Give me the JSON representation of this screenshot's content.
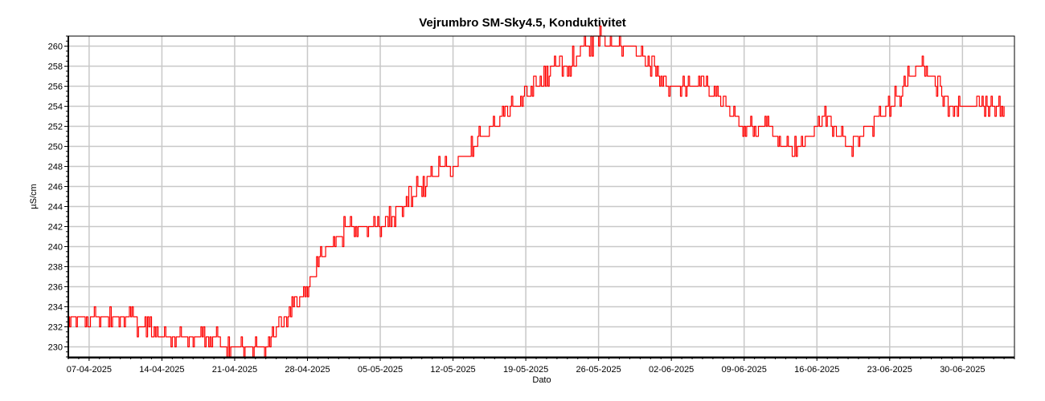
{
  "chart_data": {
    "type": "line",
    "title": "Vejrumbro SM-Sky4.5, Konduktivitet",
    "xlabel": "Dato",
    "ylabel": "µS/cm",
    "x_type": "date",
    "xlim": [
      "2025-04-05",
      "2025-07-05"
    ],
    "ylim": [
      229,
      261
    ],
    "x_ticks": [
      "07-04-2025",
      "14-04-2025",
      "21-04-2025",
      "28-04-2025",
      "05-05-2025",
      "12-05-2025",
      "19-05-2025",
      "26-05-2025",
      "02-06-2025",
      "09-06-2025",
      "16-06-2025",
      "23-06-2025",
      "30-06-2025"
    ],
    "y_ticks": [
      230,
      232,
      234,
      236,
      238,
      240,
      242,
      244,
      246,
      248,
      250,
      252,
      254,
      256,
      258,
      260
    ],
    "grid": true,
    "legend": "none",
    "series": [
      {
        "color": "#ff0000",
        "x": [
          "2025-04-05",
          "2025-04-06",
          "2025-04-07",
          "2025-04-08",
          "2025-04-09",
          "2025-04-10",
          "2025-04-11",
          "2025-04-12",
          "2025-04-13",
          "2025-04-14",
          "2025-04-15",
          "2025-04-16",
          "2025-04-17",
          "2025-04-18",
          "2025-04-19",
          "2025-04-20",
          "2025-04-21",
          "2025-04-22",
          "2025-04-23",
          "2025-04-24",
          "2025-04-25",
          "2025-04-26",
          "2025-04-27",
          "2025-04-28",
          "2025-04-29",
          "2025-04-30",
          "2025-05-01",
          "2025-05-02",
          "2025-05-03",
          "2025-05-04",
          "2025-05-05",
          "2025-05-06",
          "2025-05-07",
          "2025-05-08",
          "2025-05-09",
          "2025-05-10",
          "2025-05-11",
          "2025-05-12",
          "2025-05-13",
          "2025-05-14",
          "2025-05-15",
          "2025-05-16",
          "2025-05-17",
          "2025-05-18",
          "2025-05-19",
          "2025-05-20",
          "2025-05-21",
          "2025-05-22",
          "2025-05-23",
          "2025-05-24",
          "2025-05-25",
          "2025-05-26",
          "2025-05-27",
          "2025-05-28",
          "2025-05-29",
          "2025-05-30",
          "2025-05-31",
          "2025-06-01",
          "2025-06-02",
          "2025-06-03",
          "2025-06-04",
          "2025-06-05",
          "2025-06-06",
          "2025-06-07",
          "2025-06-08",
          "2025-06-09",
          "2025-06-10",
          "2025-06-11",
          "2025-06-12",
          "2025-06-13",
          "2025-06-14",
          "2025-06-15",
          "2025-06-16",
          "2025-06-17",
          "2025-06-18",
          "2025-06-19",
          "2025-06-20",
          "2025-06-21",
          "2025-06-22",
          "2025-06-23",
          "2025-06-24",
          "2025-06-25",
          "2025-06-26",
          "2025-06-27",
          "2025-06-28",
          "2025-06-29",
          "2025-06-30",
          "2025-07-01",
          "2025-07-02",
          "2025-07-03",
          "2025-07-04"
        ],
        "y": [
          233,
          233,
          233,
          233,
          233,
          233,
          233,
          232,
          232,
          231,
          231,
          231,
          231,
          231,
          231,
          230,
          230,
          230,
          230,
          230,
          231,
          233,
          235,
          236,
          238,
          240,
          241,
          242,
          242,
          242,
          242,
          243,
          244,
          245,
          246,
          247,
          248,
          248,
          249,
          250,
          251,
          252,
          253,
          254,
          255,
          256,
          257,
          258,
          258,
          259,
          260,
          261,
          260,
          260,
          260,
          259,
          258,
          257,
          256,
          256,
          256,
          256,
          255,
          254,
          253,
          252,
          252,
          252,
          251,
          250,
          250,
          251,
          252,
          253,
          251,
          250,
          251,
          252,
          253,
          254,
          255,
          257,
          258,
          257,
          255,
          254,
          254,
          254,
          254,
          254,
          254
        ]
      }
    ]
  }
}
